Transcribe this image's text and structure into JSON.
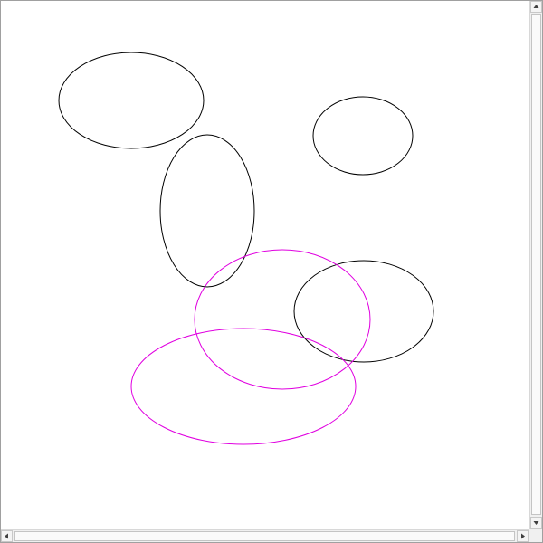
{
  "canvas": {
    "background": "#ffffff",
    "shapes": [
      {
        "name": "ellipse-top-left",
        "stroke": "#000000"
      },
      {
        "name": "ellipse-top-right",
        "stroke": "#000000"
      },
      {
        "name": "ellipse-tall-middle",
        "stroke": "#000000"
      },
      {
        "name": "ellipse-right-middle",
        "stroke": "#000000"
      },
      {
        "name": "ellipse-magenta-upper",
        "stroke": "#e000e0"
      },
      {
        "name": "ellipse-magenta-lower",
        "stroke": "#e000e0"
      }
    ]
  },
  "scrollbars": {
    "vertical": {
      "up_icon": "arrow-up-icon",
      "down_icon": "arrow-down-icon"
    },
    "horizontal": {
      "left_icon": "arrow-left-icon",
      "right_icon": "arrow-right-icon"
    }
  }
}
